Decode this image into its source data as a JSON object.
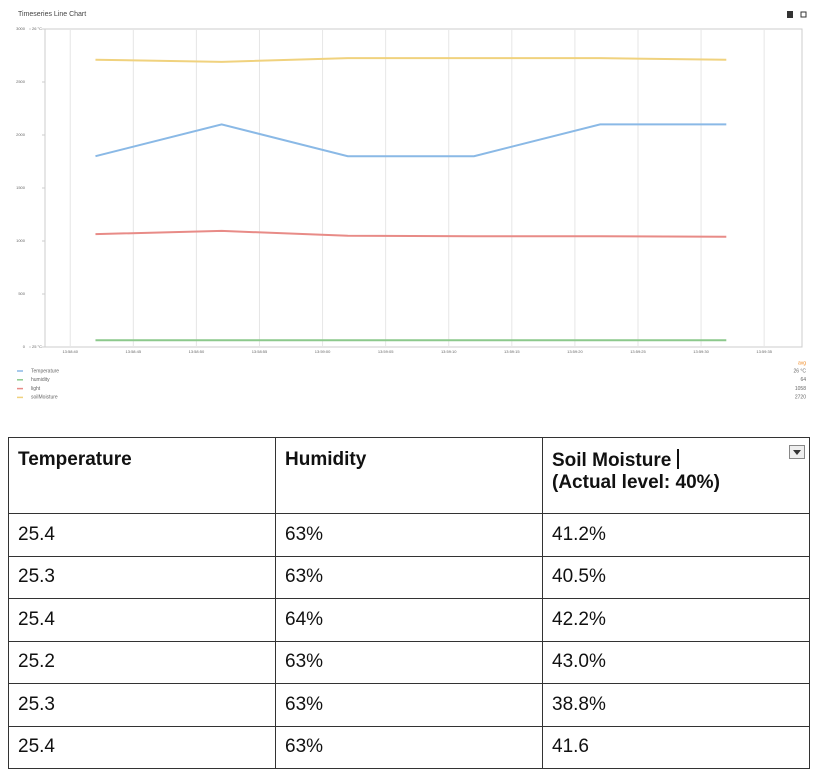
{
  "chart_data": {
    "type": "line",
    "title": "Timeseries Line Chart",
    "x": [
      "13:58:42",
      "13:58:52",
      "13:59:02",
      "13:59:12",
      "13:59:22",
      "13:59:32"
    ],
    "xlim": [
      "13:58:38",
      "13:59:38"
    ],
    "xticks": [
      "13:58:40",
      "13:58:45",
      "13:58:50",
      "13:58:55",
      "13:59:00",
      "13:59:05",
      "13:59:10",
      "13:59:15",
      "13:59:20",
      "13:59:25",
      "13:59:30",
      "13:59:35"
    ],
    "ylim": [
      0,
      3000
    ],
    "yticks": [
      0,
      500,
      1000,
      1500,
      2000,
      2500,
      3000
    ],
    "y2lim": [
      25,
      26
    ],
    "y2ticks": [
      {
        "value": 25,
        "label": "25 °C"
      },
      {
        "value": 26,
        "label": "26 °C"
      }
    ],
    "grid": "x",
    "legend_header": "avg",
    "series": [
      {
        "name": "Temperature",
        "color": "#8ab9e6",
        "axis": "y2",
        "values": [
          25.6,
          25.7,
          25.6,
          25.6,
          25.7,
          25.7
        ],
        "legend_value": "26 °C"
      },
      {
        "name": "humidity",
        "color": "#8cc98c",
        "values": [
          64,
          64,
          64,
          64,
          64,
          64
        ],
        "legend_value": "64"
      },
      {
        "name": "light",
        "color": "#e88b87",
        "values": [
          1065,
          1095,
          1050,
          1045,
          1045,
          1040
        ],
        "legend_value": "1058"
      },
      {
        "name": "soilMoisture",
        "color": "#f0d27e",
        "values": [
          2710,
          2690,
          2725,
          2725,
          2725,
          2710
        ],
        "legend_value": "2720"
      }
    ]
  },
  "table": {
    "headers": [
      "Temperature",
      "Humidity",
      "Soil Moisture"
    ],
    "header_note": "(Actual level: 40%)",
    "rows": [
      [
        "25.4",
        "63%",
        "41.2%"
      ],
      [
        "25.3",
        "63%",
        "40.5%"
      ],
      [
        "25.4",
        "64%",
        "42.2%"
      ],
      [
        "25.2",
        "63%",
        "43.0%"
      ],
      [
        "25.3",
        "63%",
        "38.8%"
      ],
      [
        "25.4",
        "63%",
        "41.6"
      ]
    ]
  }
}
